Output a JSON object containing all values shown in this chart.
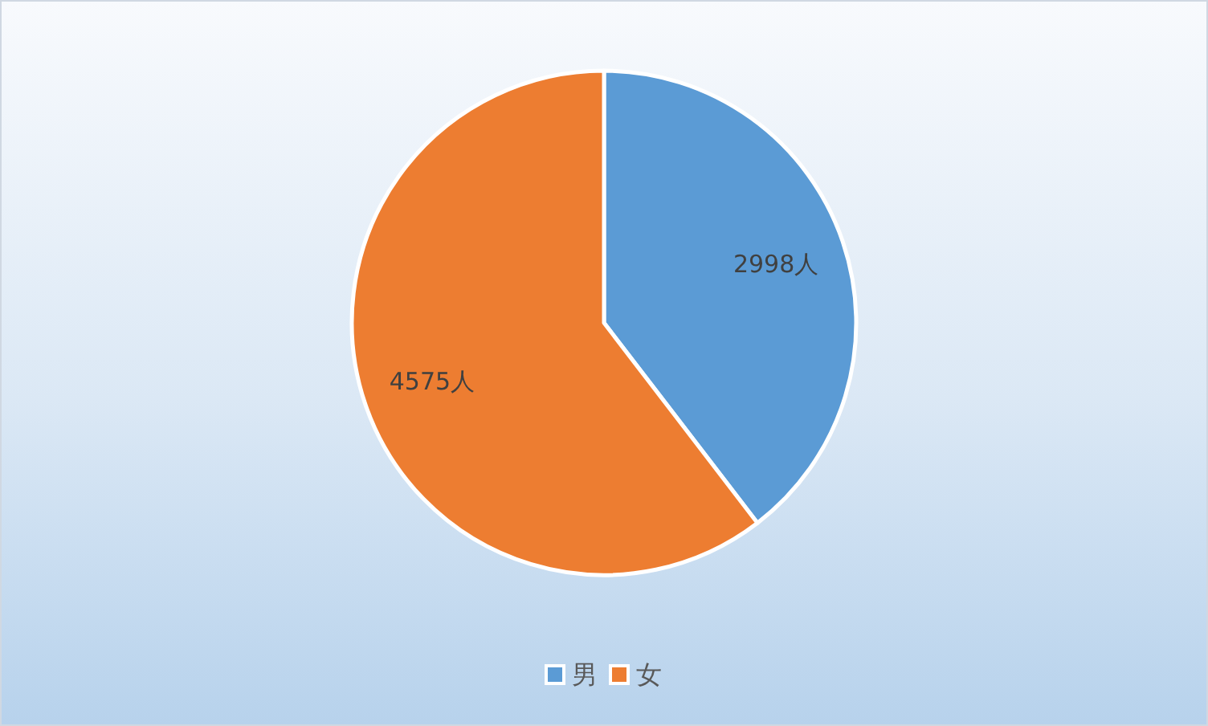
{
  "chart_data": {
    "type": "pie",
    "categories": [
      "男",
      "女"
    ],
    "values": [
      2998,
      4575
    ],
    "colors": [
      "#5b9bd5",
      "#ed7d31"
    ],
    "value_labels": [
      "2998人",
      "4575人"
    ],
    "legend": "bottom"
  }
}
